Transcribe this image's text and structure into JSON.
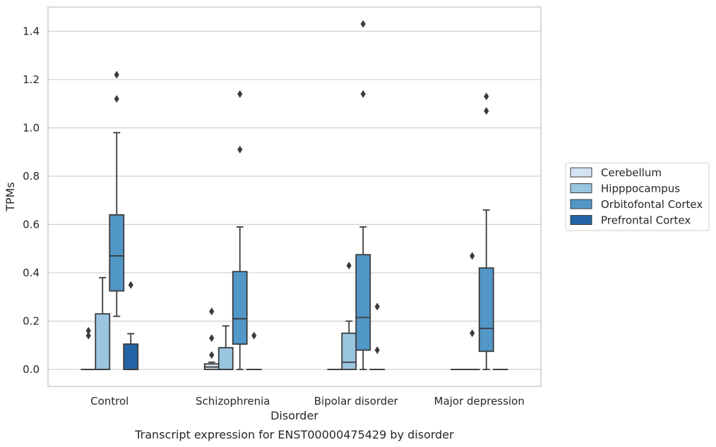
{
  "chart_data": {
    "type": "box",
    "title": "Transcript expression for ENST00000475429 by disorder",
    "xlabel": "Disorder",
    "ylabel": "TPMs",
    "ylim": [
      -0.07,
      1.5
    ],
    "yticks": [
      "0.0",
      "0.2",
      "0.4",
      "0.6",
      "0.8",
      "1.0",
      "1.2",
      "1.4"
    ],
    "categories": [
      "Control",
      "Schizophrenia",
      "Bipolar disorder",
      "Major depression"
    ],
    "grid": "horizontal",
    "legend_position": "center-right",
    "series": [
      {
        "name": "Cerebellum",
        "color": "#d3e3f3",
        "boxes": [
          {
            "q1": 0,
            "median": 0,
            "q3": 0,
            "whisker_low": 0,
            "whisker_high": 0,
            "outliers": [
              0.14,
              0.16
            ]
          },
          {
            "q1": 0,
            "median": 0.01,
            "q3": 0.023,
            "whisker_low": 0,
            "whisker_high": 0.03,
            "outliers": [
              0.06,
              0.13,
              0.24
            ]
          },
          {
            "q1": 0,
            "median": 0,
            "q3": 0,
            "whisker_low": 0,
            "whisker_high": 0,
            "outliers": []
          },
          {
            "q1": 0,
            "median": 0,
            "q3": 0,
            "whisker_low": 0,
            "whisker_high": 0,
            "outliers": []
          }
        ]
      },
      {
        "name": "Hipppocampus",
        "color": "#9ac5e0",
        "boxes": [
          {
            "q1": 0,
            "median": 0,
            "q3": 0.23,
            "whisker_low": 0,
            "whisker_high": 0.38,
            "outliers": []
          },
          {
            "q1": 0,
            "median": 0,
            "q3": 0.09,
            "whisker_low": 0,
            "whisker_high": 0.18,
            "outliers": []
          },
          {
            "q1": 0,
            "median": 0.03,
            "q3": 0.15,
            "whisker_low": 0,
            "whisker_high": 0.2,
            "outliers": [
              0.43
            ]
          },
          {
            "q1": 0,
            "median": 0,
            "q3": 0,
            "whisker_low": 0,
            "whisker_high": 0,
            "outliers": [
              0.15,
              0.47
            ]
          }
        ]
      },
      {
        "name": "Orbitofontal Cortex",
        "color": "#5197c7",
        "boxes": [
          {
            "q1": 0.325,
            "median": 0.47,
            "q3": 0.64,
            "whisker_low": 0.22,
            "whisker_high": 0.98,
            "outliers": [
              1.12,
              1.22
            ]
          },
          {
            "q1": 0.105,
            "median": 0.21,
            "q3": 0.405,
            "whisker_low": 0,
            "whisker_high": 0.59,
            "outliers": [
              0.91,
              1.14
            ]
          },
          {
            "q1": 0.08,
            "median": 0.215,
            "q3": 0.475,
            "whisker_low": 0,
            "whisker_high": 0.59,
            "outliers": [
              1.14,
              1.43
            ]
          },
          {
            "q1": 0.075,
            "median": 0.17,
            "q3": 0.42,
            "whisker_low": 0,
            "whisker_high": 0.66,
            "outliers": [
              1.07,
              1.13
            ]
          }
        ]
      },
      {
        "name": "Prefrontal Cortex",
        "color": "#2464a6",
        "boxes": [
          {
            "q1": 0,
            "median": 0,
            "q3": 0.105,
            "whisker_low": 0,
            "whisker_high": 0.148,
            "outliers": [
              0.35
            ]
          },
          {
            "q1": 0,
            "median": 0,
            "q3": 0,
            "whisker_low": 0,
            "whisker_high": 0,
            "outliers": [
              0.14
            ]
          },
          {
            "q1": 0,
            "median": 0,
            "q3": 0,
            "whisker_low": 0,
            "whisker_high": 0,
            "outliers": [
              0.08,
              0.26
            ]
          },
          {
            "q1": 0,
            "median": 0,
            "q3": 0,
            "whisker_low": 0,
            "whisker_high": 0,
            "outliers": []
          }
        ]
      }
    ]
  }
}
